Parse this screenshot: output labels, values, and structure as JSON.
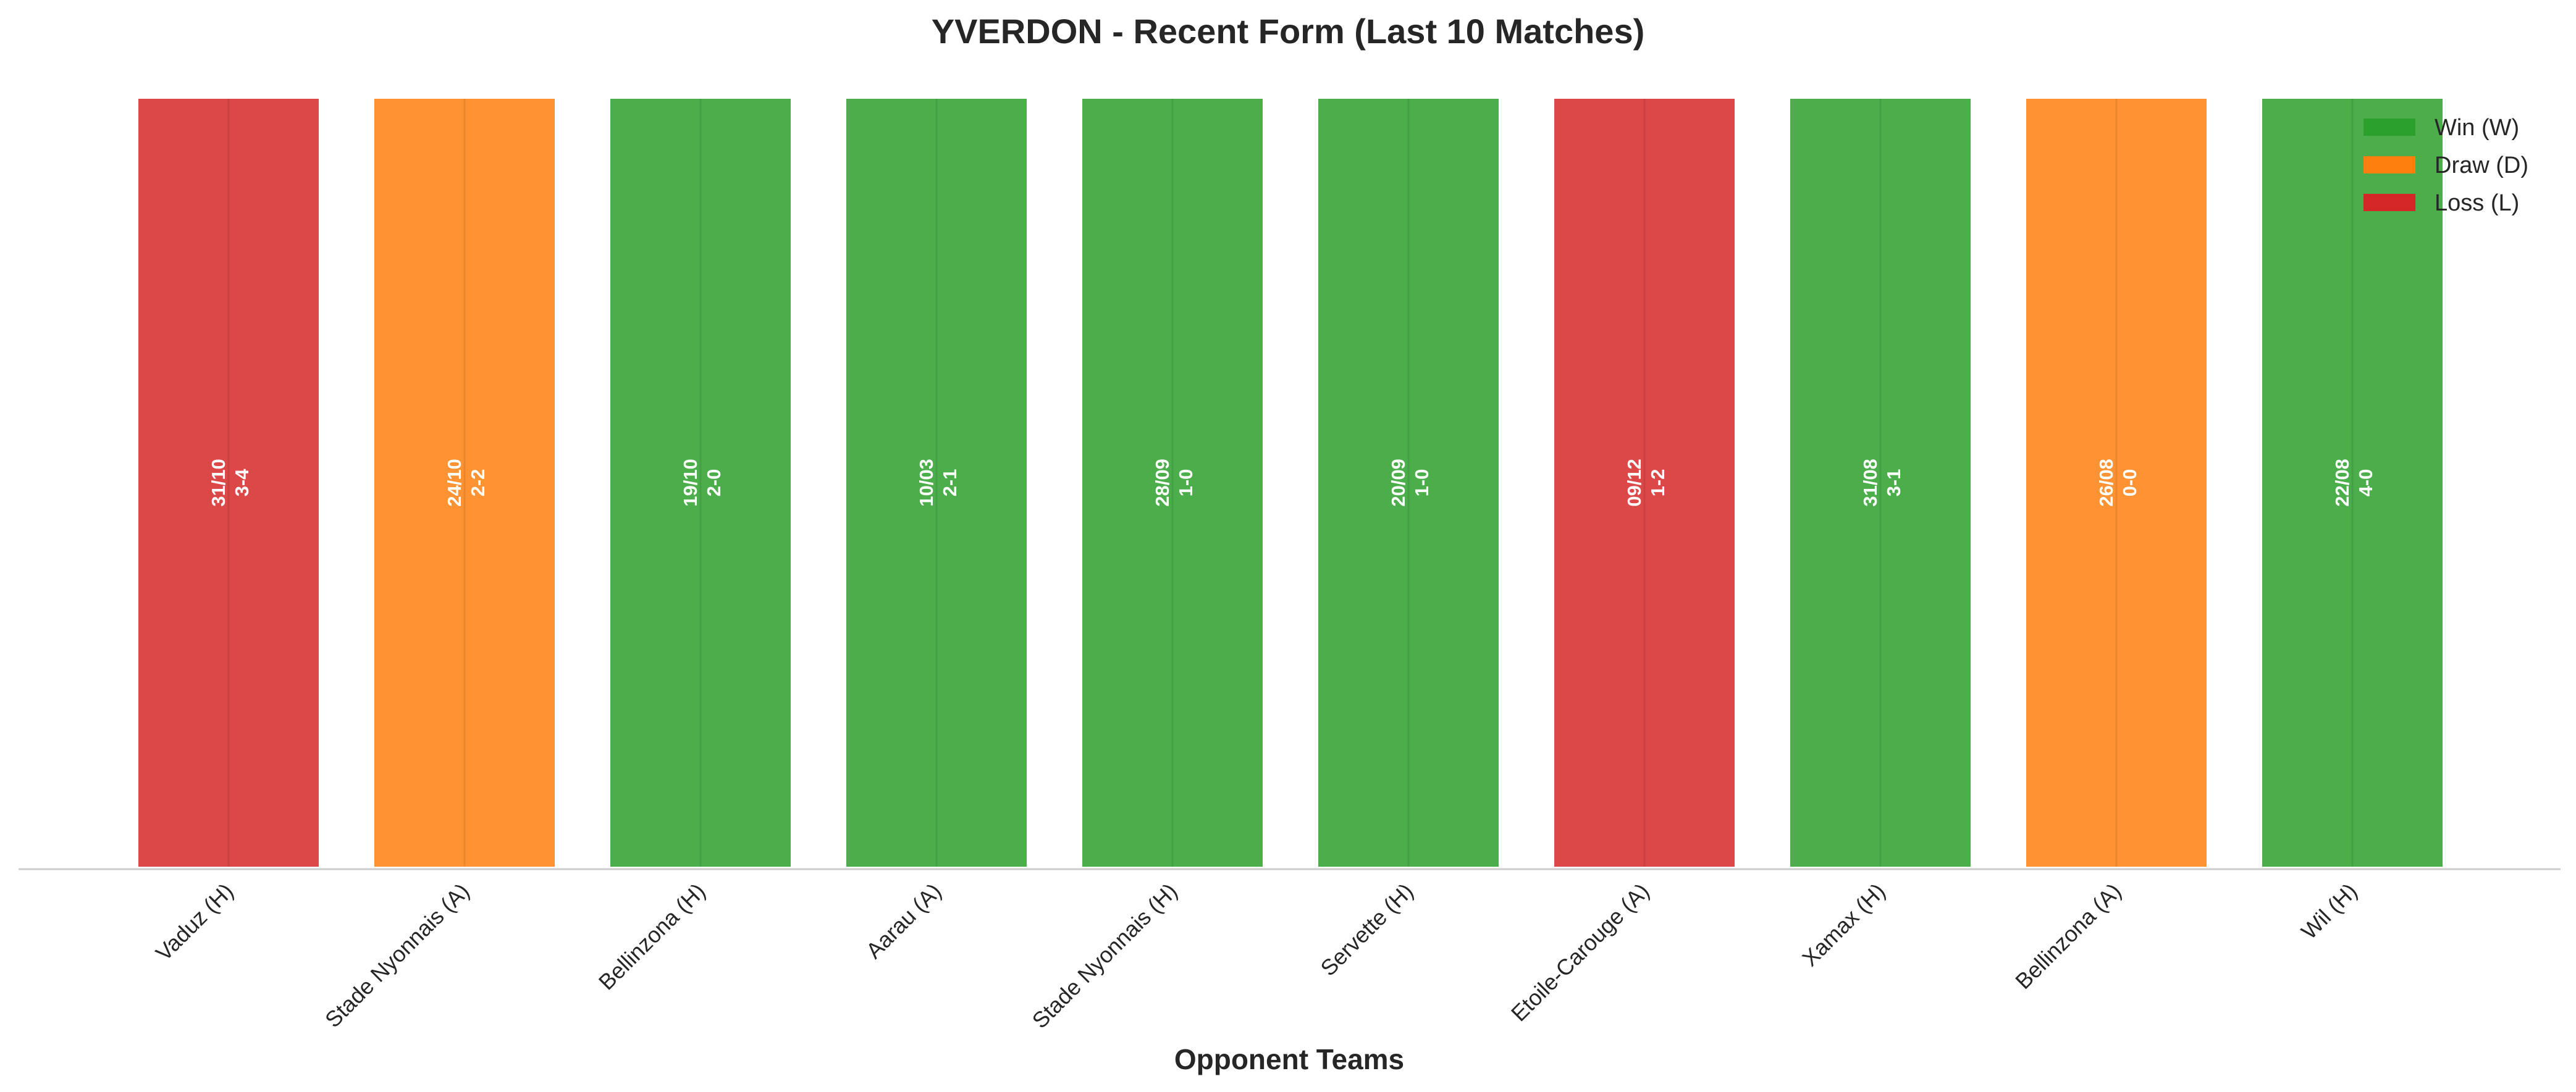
{
  "chart_data": {
    "type": "bar",
    "title": "YVERDON - Recent Form (Last 10 Matches)",
    "xlabel": "Opponent Teams",
    "ylabel": "",
    "grid": false,
    "legend_placement": "top-right",
    "ylim": [
      0,
      1
    ],
    "categories": [
      "Vaduz (H)",
      "Stade Nyonnais (A)",
      "Bellinzona (H)",
      "Aarau (A)",
      "Stade Nyonnais (H)",
      "Servette (H)",
      "Etoile-Carouge (A)",
      "Xamax (H)",
      "Bellinzona (A)",
      "Wil (H)"
    ],
    "values": [
      1,
      1,
      1,
      1,
      1,
      1,
      1,
      1,
      1,
      1
    ],
    "results": [
      "L",
      "D",
      "W",
      "W",
      "W",
      "W",
      "L",
      "W",
      "D",
      "W"
    ],
    "dates": [
      "31/10",
      "24/10",
      "19/10",
      "10/03",
      "28/09",
      "20/09",
      "09/12",
      "31/08",
      "26/08",
      "22/08"
    ],
    "scores": [
      "3-4",
      "2-2",
      "2-0",
      "2-1",
      "1-0",
      "1-0",
      "1-2",
      "3-1",
      "0-0",
      "4-0"
    ],
    "legend": [
      {
        "key": "W",
        "label": "Win (W)",
        "color": "#2ca02c"
      },
      {
        "key": "D",
        "label": "Draw (D)",
        "color": "#ff7f0e"
      },
      {
        "key": "L",
        "label": "Loss (L)",
        "color": "#d62728"
      }
    ]
  }
}
